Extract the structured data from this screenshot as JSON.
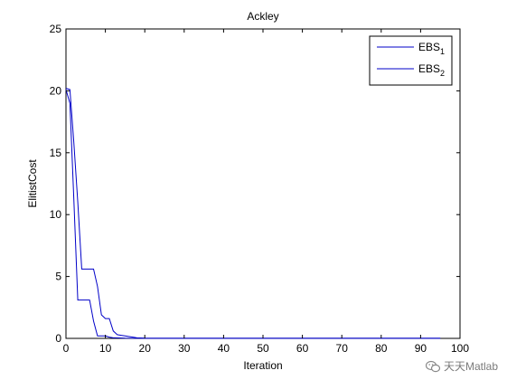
{
  "chart_data": {
    "type": "line",
    "title": "Ackley",
    "xlabel": "Iteration",
    "ylabel": "ElitistCost",
    "xlim": [
      0,
      100
    ],
    "ylim": [
      0,
      25
    ],
    "xticks": [
      0,
      10,
      20,
      30,
      40,
      50,
      60,
      70,
      80,
      90,
      100
    ],
    "yticks": [
      0,
      5,
      10,
      15,
      20,
      25
    ],
    "grid": false,
    "legend_position": "top-right",
    "series": [
      {
        "name": "EBS",
        "subscript": "1",
        "color": "#0000c8",
        "x": [
          0,
          1,
          2,
          3,
          4,
          5,
          6,
          7,
          8,
          9,
          10,
          11,
          12,
          13,
          14,
          15,
          16,
          17,
          18,
          20,
          30,
          40,
          50,
          60,
          70,
          80,
          90,
          95
        ],
        "y": [
          20.2,
          20.1,
          15.8,
          11.0,
          5.6,
          5.6,
          5.6,
          5.6,
          4.2,
          1.9,
          1.6,
          1.6,
          0.6,
          0.3,
          0.25,
          0.2,
          0.15,
          0.1,
          0.05,
          0.02,
          0.01,
          0.01,
          0.01,
          0.01,
          0.01,
          0.01,
          0.01,
          0.01
        ]
      },
      {
        "name": "EBS",
        "subscript": "2",
        "color": "#0000c8",
        "x": [
          0,
          1,
          2,
          3,
          4,
          5,
          6,
          7,
          8,
          9,
          10,
          11,
          12,
          15,
          20,
          30,
          40,
          50,
          60,
          70,
          80,
          90,
          95
        ],
        "y": [
          20.1,
          19.0,
          11.2,
          3.1,
          3.1,
          3.1,
          3.1,
          1.4,
          0.2,
          0.2,
          0.2,
          0.1,
          0.05,
          0.02,
          0.01,
          0.01,
          0.01,
          0.01,
          0.01,
          0.01,
          0.01,
          0.01,
          0.01
        ]
      }
    ]
  },
  "watermark": {
    "text": "天天Matlab",
    "icon": "wechat-icon"
  }
}
